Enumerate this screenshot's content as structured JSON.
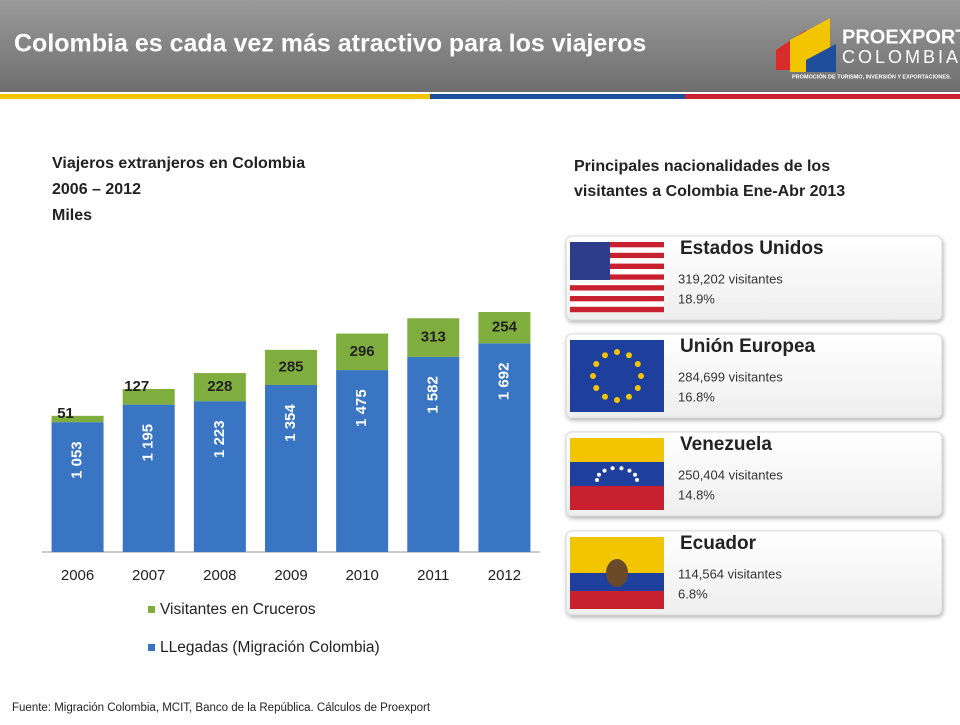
{
  "header": {
    "title": "Colombia es cada vez más atractivo para los viajeros",
    "logo": {
      "name_top": "PROEXPORT",
      "name_bottom": "COLOMBIA",
      "tagline": "PROMOCIÓN DE TURISMO, INVERSIÓN Y EXPORTACIONES."
    }
  },
  "chart_data": {
    "type": "stacked-bar",
    "title": "Viajeros extranjeros en Colombia",
    "subtitle": "2006 – 2012",
    "unit_label": "Miles",
    "categories": [
      "2006",
      "2007",
      "2008",
      "2009",
      "2010",
      "2011",
      "2012"
    ],
    "series": [
      {
        "name": "LLegadas (Migración Colombia)",
        "color": "#3a75c4",
        "values": [
          1053,
          1195,
          1223,
          1354,
          1475,
          1582,
          1692
        ],
        "value_labels": [
          "1 053",
          "1 195",
          "1 223",
          "1 354",
          "1 475",
          "1 582",
          "1 692"
        ]
      },
      {
        "name": "Visitantes en Cruceros",
        "color": "#7fae3e",
        "values": [
          51,
          127,
          228,
          285,
          296,
          313,
          254
        ]
      }
    ]
  },
  "nationalities": {
    "title": "Principales nacionalidades de los visitantes a Colombia Ene-Abr 2013",
    "items": [
      {
        "name": "Estados Unidos",
        "visitors": "319,202  visitantes",
        "share": "18.9%"
      },
      {
        "name": "Unión Europea",
        "visitors": "284,699  visitantes",
        "share": "16.8%"
      },
      {
        "name": "Venezuela",
        "visitors": "250,404  visitantes",
        "share": "14.8%"
      },
      {
        "name": "Ecuador",
        "visitors": "114,564  visitantes",
        "share": "6.8%"
      }
    ]
  },
  "footer": "Fuente: Migración Colombia, MCIT, Banco de la República. Cálculos de Proexport"
}
